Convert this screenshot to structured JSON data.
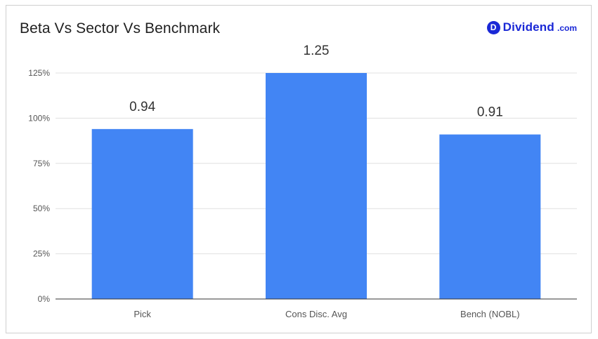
{
  "header": {
    "title": "Beta Vs Sector Vs Benchmark",
    "brand_logo_text": "Dividend",
    "brand_logo_tld": ".com",
    "brand_logo_badge": "D"
  },
  "colors": {
    "bar": "#4285f4",
    "grid": "#e0e0e0",
    "baseline": "#333333",
    "brand": "#1a28d6"
  },
  "chart_data": {
    "type": "bar",
    "title": "Beta Vs Sector Vs Benchmark",
    "xlabel": "",
    "ylabel": "",
    "categories": [
      "Pick",
      "Cons Disc. Avg",
      "Bench (NOBL)"
    ],
    "values": [
      0.94,
      1.25,
      0.91
    ],
    "data_labels": [
      "0.94",
      "1.25",
      "0.91"
    ],
    "ylim": [
      0,
      1.25
    ],
    "y_ticks": [
      0,
      0.25,
      0.5,
      0.75,
      1.0,
      1.25
    ],
    "y_tick_labels": [
      "0%",
      "25%",
      "50%",
      "75%",
      "100%",
      "125%"
    ],
    "grid": true,
    "legend": "none"
  }
}
